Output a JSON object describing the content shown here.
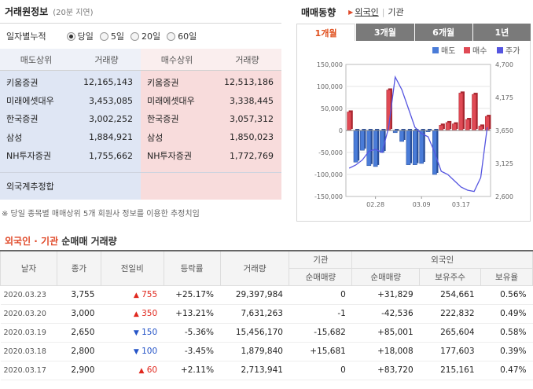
{
  "left": {
    "title": "거래원정보",
    "subtitle": "(20분 지연)",
    "period_label": "일자별누적",
    "period_options": [
      "당일",
      "5일",
      "20일",
      "60일"
    ],
    "sell": {
      "header_name": "매도상위",
      "header_vol": "거래량",
      "rows": [
        {
          "name": "키움증권",
          "vol": "12,165,143"
        },
        {
          "name": "미래에셋대우",
          "vol": "3,453,085"
        },
        {
          "name": "한국증권",
          "vol": "3,002,252"
        },
        {
          "name": "삼성",
          "vol": "1,884,921"
        },
        {
          "name": "NH투자증권",
          "vol": "1,755,662"
        }
      ],
      "foreign_label": "외국계추정합"
    },
    "buy": {
      "header_name": "매수상위",
      "header_vol": "거래량",
      "rows": [
        {
          "name": "키움증권",
          "vol": "12,513,186"
        },
        {
          "name": "미래에셋대우",
          "vol": "3,338,445"
        },
        {
          "name": "한국증권",
          "vol": "3,057,312"
        },
        {
          "name": "삼성",
          "vol": "1,850,023"
        },
        {
          "name": "NH투자증권",
          "vol": "1,772,769"
        }
      ]
    },
    "note": "※ 당일 종목별 매매상위 5개 회원사 정보를 이용한 추정치임"
  },
  "right": {
    "title": "매매동향",
    "sub_foreign": "외국인",
    "sub_inst": "기관",
    "tabs": [
      "1개월",
      "3개월",
      "6개월",
      "1년"
    ],
    "active_tab": 0
  },
  "chart_data": {
    "type": "bar",
    "legend": [
      "매도",
      "매수",
      "주가"
    ],
    "colors": {
      "sell": "#4a7cd8",
      "buy": "#e04a55",
      "price": "#5555e0"
    },
    "ylim_left": [
      -150000,
      150000
    ],
    "yticks_left": [
      "150,000",
      "100,000",
      "50,000",
      "0",
      "-50,000",
      "-100,000",
      "-150,000"
    ],
    "ylim_right": [
      2600,
      4700
    ],
    "yticks_right": [
      "4,700",
      "4,175",
      "3,650",
      "3,125",
      "2,600"
    ],
    "xticks": [
      {
        "label": "02.28",
        "index": 4
      },
      {
        "label": "03.09",
        "index": 11
      },
      {
        "label": "03.17",
        "index": 17
      }
    ],
    "net": [
      42000,
      -72000,
      -45000,
      -80000,
      -82000,
      -50000,
      92000,
      -5000,
      -25000,
      -78000,
      -78000,
      -75000,
      -3000,
      -100000,
      12000,
      18000,
      15000,
      85000,
      25000,
      82000,
      10000,
      32000
    ],
    "price": [
      3050,
      3100,
      3180,
      3320,
      3350,
      3300,
      3700,
      4500,
      4300,
      4000,
      3700,
      3600,
      3550,
      3300,
      3000,
      2950,
      2850,
      2750,
      2700,
      2680,
      2900,
      3700
    ]
  },
  "bottom": {
    "title_red": "외국인 · 기관",
    "title_rest": " 순매매 거래량",
    "headers": {
      "date": "날자",
      "close": "종가",
      "diff": "전일비",
      "rate": "등락률",
      "volume": "거래량",
      "inst": "기관",
      "inst_net": "순매매량",
      "foreign": "외국인",
      "foreign_net": "순매매량",
      "foreign_hold": "보유주수",
      "foreign_ratio": "보유율"
    },
    "rows": [
      {
        "date": "2020.03.23",
        "close": "3,755",
        "dir": "up",
        "diff": "755",
        "rate": "+25.17%",
        "volume": "29,397,984",
        "inst_net": "0",
        "foreign_net": "+31,829",
        "hold": "254,661",
        "ratio": "0.56%"
      },
      {
        "date": "2020.03.20",
        "close": "3,000",
        "dir": "up",
        "diff": "350",
        "rate": "+13.21%",
        "volume": "7,631,263",
        "inst_net": "-1",
        "foreign_net": "-42,536",
        "hold": "222,832",
        "ratio": "0.49%"
      },
      {
        "date": "2020.03.19",
        "close": "2,650",
        "dir": "down",
        "diff": "150",
        "rate": "-5.36%",
        "volume": "15,456,170",
        "inst_net": "-15,682",
        "foreign_net": "+85,001",
        "hold": "265,604",
        "ratio": "0.58%"
      },
      {
        "date": "2020.03.18",
        "close": "2,800",
        "dir": "down",
        "diff": "100",
        "rate": "-3.45%",
        "volume": "1,879,840",
        "inst_net": "+15,681",
        "foreign_net": "+18,008",
        "hold": "177,603",
        "ratio": "0.39%"
      },
      {
        "date": "2020.03.17",
        "close": "2,900",
        "dir": "up",
        "diff": "60",
        "rate": "+2.11%",
        "volume": "2,713,941",
        "inst_net": "0",
        "foreign_net": "+83,720",
        "hold": "215,161",
        "ratio": "0.47%"
      }
    ]
  }
}
